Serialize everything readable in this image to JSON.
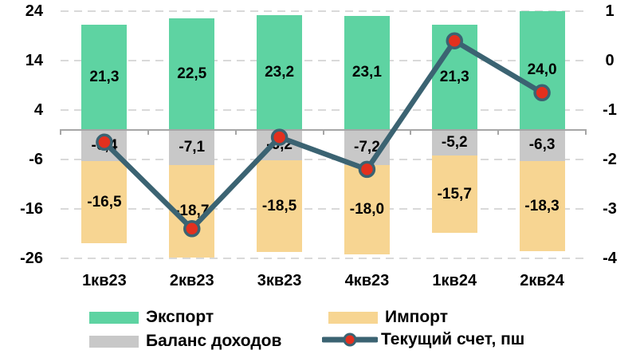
{
  "chart_data": {
    "type": "bar",
    "subtype": "stacked-bar-with-line-combo",
    "categories": [
      "1кв23",
      "2кв23",
      "3кв23",
      "4кв23",
      "1кв24",
      "2кв24"
    ],
    "series": [
      {
        "name": "Экспорт",
        "type": "bar",
        "axis": "left",
        "color": "#5ed3a2",
        "values": [
          21.3,
          22.5,
          23.2,
          23.1,
          21.3,
          24.0
        ],
        "labels": [
          "21,3",
          "22,5",
          "23,2",
          "23,1",
          "21,3",
          "24,0"
        ]
      },
      {
        "name": "Баланс доходов",
        "type": "bar",
        "axis": "left",
        "color": "#c8c8c8",
        "values": [
          -6.4,
          -7.1,
          -6.2,
          -7.2,
          -5.2,
          -6.3
        ],
        "labels": [
          "-6,4",
          "-7,1",
          "-6,2",
          "-7,2",
          "-5,2",
          "-6,3"
        ]
      },
      {
        "name": "Импорт",
        "type": "bar",
        "axis": "left",
        "color": "#f7d592",
        "values": [
          -16.5,
          -18.7,
          -18.5,
          -18.0,
          -15.7,
          -18.3
        ],
        "labels": [
          "-16,5",
          "-18,7",
          "-18,5",
          "-18,0",
          "-15,7",
          "-18,3"
        ]
      },
      {
        "name": "Текущий счет, пш",
        "type": "line",
        "axis": "right",
        "color": "#3b6372",
        "marker_color": "#e3301e",
        "values_estimated": true,
        "values": [
          -1.65,
          -3.4,
          -1.55,
          -2.2,
          0.4,
          -0.65
        ]
      }
    ],
    "left_axis": {
      "ticks": [
        "24",
        "14",
        "4",
        "-6",
        "-16",
        "-26"
      ],
      "range": [
        -26,
        24
      ]
    },
    "right_axis": {
      "ticks": [
        "1",
        "0",
        "-1",
        "-2",
        "-3",
        "-4"
      ],
      "range": [
        -4,
        1
      ]
    },
    "grid": "horizontal-dashed",
    "legend_position": "bottom"
  },
  "legend": {
    "export": "Экспорт",
    "import": "Импорт",
    "balance": "Баланс доходов",
    "current_account": "Текущий счет, пш"
  },
  "colors": {
    "export": "#5ed3a2",
    "import": "#f7d592",
    "balance": "#c8c8c8",
    "line": "#3b6372",
    "marker": "#e3301e",
    "gridline": "#d9d9d9",
    "axis_line": "#a6a6a6",
    "text": "#000000"
  }
}
